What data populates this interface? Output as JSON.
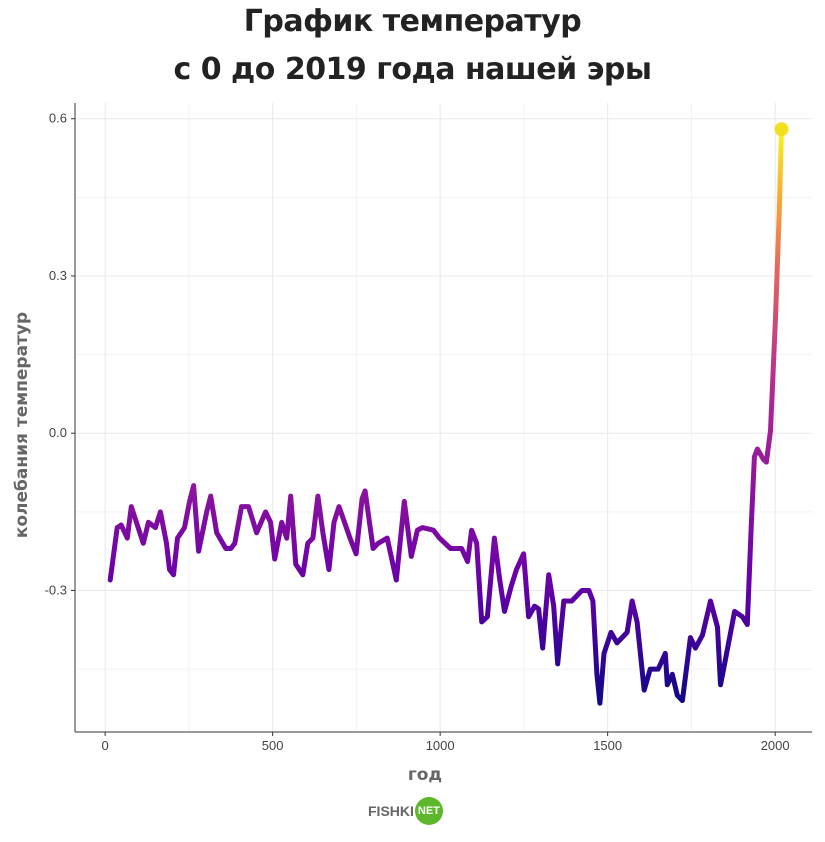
{
  "chart_data": {
    "type": "line",
    "title": [
      "График температур",
      "с 0 до 2019 года нашей эры"
    ],
    "xlabel": "год",
    "ylabel": "колебания температур",
    "xlim": [
      -90,
      2110
    ],
    "ylim": [
      -0.57,
      0.63
    ],
    "xticks": [
      0,
      500,
      1000,
      1500,
      2000
    ],
    "yticks": [
      0.6,
      0.3,
      0.0,
      -0.3
    ],
    "ytick_labels": [
      "0.6",
      "0.3",
      "0.0",
      "-0.3"
    ],
    "grid": true,
    "colormap": [
      "#0d0887",
      "#6a00a8",
      "#b12a90",
      "#e16462",
      "#fca636",
      "#f0f921"
    ],
    "end_marker_color": "#f0e020",
    "x": [
      15,
      36,
      48,
      66,
      78,
      96,
      114,
      129,
      150,
      165,
      183,
      192,
      204,
      216,
      237,
      252,
      264,
      279,
      303,
      315,
      333,
      360,
      375,
      387,
      407,
      428,
      452,
      479,
      494,
      506,
      527,
      542,
      554,
      569,
      590,
      605,
      620,
      635,
      650,
      668,
      683,
      698,
      731,
      749,
      767,
      776,
      800,
      815,
      842,
      869,
      893,
      914,
      932,
      947,
      980,
      998,
      1031,
      1064,
      1082,
      1094,
      1109,
      1124,
      1141,
      1162,
      1177,
      1192,
      1213,
      1228,
      1249,
      1264,
      1282,
      1294,
      1306,
      1324,
      1339,
      1351,
      1369,
      1393,
      1423,
      1444,
      1456,
      1468,
      1477,
      1489,
      1510,
      1528,
      1558,
      1573,
      1588,
      1609,
      1627,
      1651,
      1672,
      1678,
      1693,
      1708,
      1723,
      1747,
      1762,
      1783,
      1807,
      1828,
      1837,
      1846,
      1861,
      1879,
      1902,
      1917,
      1929,
      1938,
      1947,
      1965,
      1974,
      1986,
      2001,
      2012,
      2019
    ],
    "y": [
      -0.28,
      -0.18,
      -0.175,
      -0.2,
      -0.14,
      -0.175,
      -0.21,
      -0.17,
      -0.18,
      -0.15,
      -0.21,
      -0.26,
      -0.27,
      -0.2,
      -0.18,
      -0.13,
      -0.1,
      -0.225,
      -0.15,
      -0.12,
      -0.19,
      -0.22,
      -0.22,
      -0.21,
      -0.14,
      -0.14,
      -0.19,
      -0.15,
      -0.17,
      -0.24,
      -0.17,
      -0.2,
      -0.12,
      -0.25,
      -0.27,
      -0.21,
      -0.2,
      -0.12,
      -0.19,
      -0.26,
      -0.17,
      -0.14,
      -0.2,
      -0.23,
      -0.125,
      -0.11,
      -0.22,
      -0.21,
      -0.2,
      -0.28,
      -0.13,
      -0.235,
      -0.185,
      -0.18,
      -0.185,
      -0.2,
      -0.22,
      -0.22,
      -0.245,
      -0.185,
      -0.21,
      -0.36,
      -0.35,
      -0.2,
      -0.275,
      -0.34,
      -0.29,
      -0.26,
      -0.23,
      -0.35,
      -0.33,
      -0.335,
      -0.41,
      -0.27,
      -0.33,
      -0.44,
      -0.32,
      -0.32,
      -0.3,
      -0.3,
      -0.32,
      -0.46,
      -0.515,
      -0.42,
      -0.38,
      -0.4,
      -0.38,
      -0.32,
      -0.36,
      -0.49,
      -0.45,
      -0.45,
      -0.42,
      -0.48,
      -0.46,
      -0.5,
      -0.51,
      -0.39,
      -0.41,
      -0.385,
      -0.32,
      -0.37,
      -0.48,
      -0.45,
      -0.4,
      -0.34,
      -0.35,
      -0.365,
      -0.17,
      -0.045,
      -0.03,
      -0.05,
      -0.055,
      0.005,
      0.22,
      0.42,
      0.58
    ]
  },
  "watermark": {
    "brand": "FISHKI",
    "badge": "NET"
  }
}
